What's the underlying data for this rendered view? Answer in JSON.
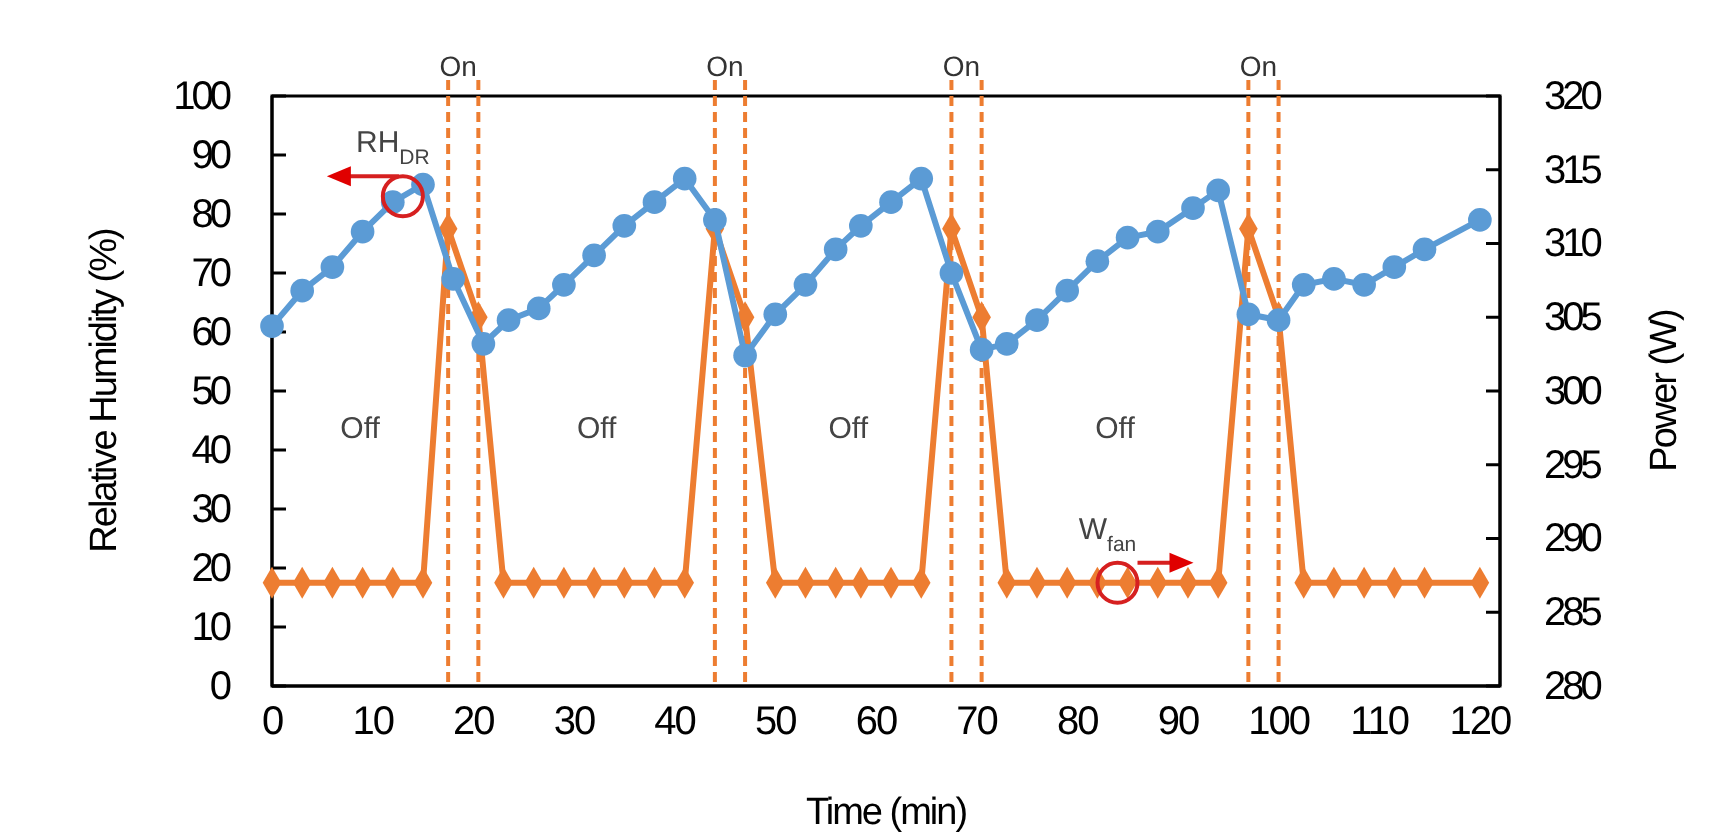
{
  "chart_data": {
    "type": "line",
    "xlabel": "Time (min)",
    "ylabel": "Relative Humidity (%)",
    "y2label": "Power (W)",
    "xlim": [
      0,
      122
    ],
    "xticks": [
      0,
      10,
      20,
      30,
      40,
      50,
      60,
      70,
      80,
      90,
      100,
      110,
      120
    ],
    "ylim": [
      0,
      100
    ],
    "yticks": [
      0,
      10,
      20,
      30,
      40,
      50,
      60,
      70,
      80,
      90,
      100
    ],
    "y2lim": [
      280,
      320
    ],
    "y2ticks": [
      280,
      285,
      290,
      295,
      300,
      305,
      310,
      315,
      320
    ],
    "grid": false,
    "series": [
      {
        "color": "#5b9bd5",
        "marker": "circle",
        "x": [
          0,
          3,
          6,
          9,
          12,
          15,
          18,
          21,
          23.5,
          26.5,
          29,
          32,
          35,
          38,
          41,
          44,
          47,
          50,
          53,
          56,
          58.5,
          61.5,
          64.5,
          67.5,
          70.5,
          73,
          76,
          79,
          82,
          85,
          88,
          91.5,
          94,
          97,
          100,
          102.5,
          105.5,
          108.5,
          111.5,
          114.5,
          120
        ],
        "values": [
          61,
          67,
          71,
          77,
          82,
          85,
          69,
          58,
          62,
          64,
          68,
          73,
          78,
          82,
          86,
          79,
          56,
          63,
          68,
          74,
          78,
          82,
          86,
          70,
          57,
          58,
          62,
          67,
          72,
          76,
          77,
          81,
          84,
          63,
          62,
          68,
          69,
          68,
          71,
          74,
          79
        ]
      },
      {
        "color": "#ed7d31",
        "marker": "diamond",
        "axis": "y2",
        "x": [
          0,
          3,
          6,
          9,
          12,
          15,
          17.5,
          20.5,
          23,
          26,
          29,
          32,
          35,
          38,
          41,
          44,
          47,
          50,
          53,
          56,
          58.5,
          61.5,
          64.5,
          67.5,
          70.5,
          73,
          76,
          79,
          82,
          85,
          88,
          91,
          94,
          97,
          100,
          102.5,
          105.5,
          108.5,
          111.5,
          114.5,
          120
        ],
        "values": [
          287,
          287,
          287,
          287,
          287,
          287,
          311,
          305,
          287,
          287,
          287,
          287,
          287,
          287,
          287,
          311,
          305,
          287,
          287,
          287,
          287,
          287,
          287,
          311,
          305,
          287,
          287,
          287,
          287,
          287,
          287,
          287,
          287,
          311,
          305,
          287,
          287,
          287,
          287,
          287,
          287
        ]
      }
    ],
    "ref_lines": [
      {
        "axis": "x",
        "value": 17.5,
        "label": "On",
        "color": "#ed7d31",
        "line_style": "dashed"
      },
      {
        "axis": "x",
        "value": 20.5,
        "color": "#ed7d31",
        "line_style": "dashed"
      },
      {
        "axis": "x",
        "value": 44,
        "label": "On",
        "color": "#ed7d31",
        "line_style": "dashed"
      },
      {
        "axis": "x",
        "value": 47,
        "color": "#ed7d31",
        "line_style": "dashed"
      },
      {
        "axis": "x",
        "value": 67.5,
        "label": "On",
        "color": "#ed7d31",
        "line_style": "dashed"
      },
      {
        "axis": "x",
        "value": 70.5,
        "color": "#ed7d31",
        "line_style": "dashed"
      },
      {
        "axis": "x",
        "value": 97,
        "label": "On",
        "color": "#ed7d31",
        "line_style": "dashed"
      },
      {
        "axis": "x",
        "value": 100,
        "color": "#ed7d31",
        "line_style": "dashed"
      }
    ],
    "annotations": [
      "Off",
      "Off",
      "Off",
      "Off",
      {
        "text": "RH$_{DR}$",
        "x": 13,
        "y": 83
      },
      {
        "text": "W$_{fan}$",
        "x": 84,
        "y": 17.5
      }
    ]
  }
}
